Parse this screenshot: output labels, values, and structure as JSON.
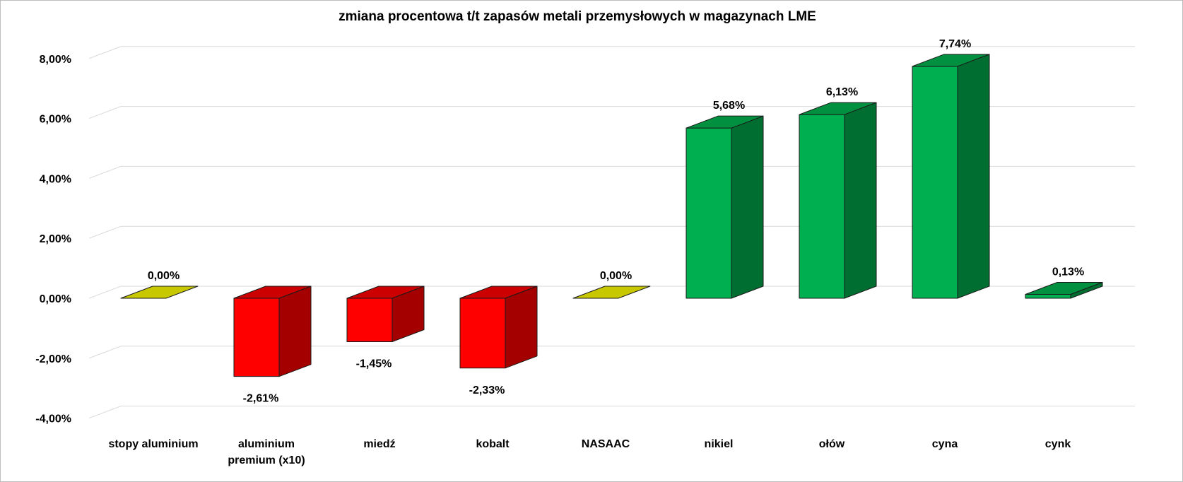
{
  "chart_data": {
    "type": "bar",
    "title": "zmiana procentowa t/t zapasów metali przemysłowych w magazynach LME",
    "categories": [
      [
        "stopy aluminium"
      ],
      [
        "aluminium",
        "premium (x10)"
      ],
      [
        "miedź"
      ],
      [
        "kobalt"
      ],
      [
        "NASAAC"
      ],
      [
        "nikiel"
      ],
      [
        "ołów"
      ],
      [
        "cyna"
      ],
      [
        "cynk"
      ]
    ],
    "values": [
      0.0,
      -2.61,
      -1.45,
      -2.33,
      0.0,
      5.68,
      6.13,
      7.74,
      0.13
    ],
    "data_labels": [
      "0,00%",
      "-2,61%",
      "-1,45%",
      "-2,33%",
      "0,00%",
      "5,68%",
      "6,13%",
      "7,74%",
      "0,13%"
    ],
    "ylim": [
      -4,
      8
    ],
    "yticks": [
      "-4,00%",
      "-2,00%",
      "0,00%",
      "2,00%",
      "4,00%",
      "6,00%",
      "8,00%"
    ],
    "ytick_values": [
      -4,
      -2,
      0,
      2,
      4,
      6,
      8
    ],
    "grid": true,
    "legend": "none",
    "colors": {
      "positive": {
        "face": "#00b050",
        "top": "#00903f",
        "side": "#006e30"
      },
      "negative": {
        "face": "#ff0000",
        "top": "#cc0000",
        "side": "#a50000"
      },
      "zero": {
        "face": "#c8c800",
        "top": "#c8c800",
        "side": "#9a9a00"
      }
    }
  }
}
